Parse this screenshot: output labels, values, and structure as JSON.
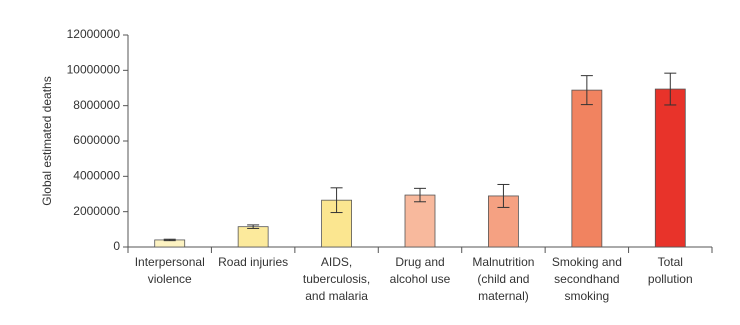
{
  "chart_data": {
    "type": "bar",
    "y_label": "Global estimated deaths",
    "categories": [
      [
        "Interpersonal",
        "violence"
      ],
      [
        "Road injuries"
      ],
      [
        "AIDS,",
        "tuberculosis,",
        "and malaria"
      ],
      [
        "Drug and",
        "alcohol use"
      ],
      [
        "Malnutrition",
        "(child and",
        "maternal)"
      ],
      [
        "Smoking and",
        "secondhand",
        "smoking"
      ],
      [
        "Total",
        "pollution"
      ]
    ],
    "values": [
      400000,
      1150000,
      2650000,
      2940000,
      2890000,
      8880000,
      8940000
    ],
    "errors": [
      40000,
      100000,
      700000,
      380000,
      650000,
      820000,
      900000
    ],
    "colors": [
      "#fdf3c2",
      "#fcea9c",
      "#fbe690",
      "#f8b99d",
      "#f5a182",
      "#f18360",
      "#e8332a"
    ],
    "ylim": [
      0,
      12000000
    ],
    "yticks": [
      0,
      2000000,
      4000000,
      6000000,
      8000000,
      10000000,
      12000000
    ]
  }
}
